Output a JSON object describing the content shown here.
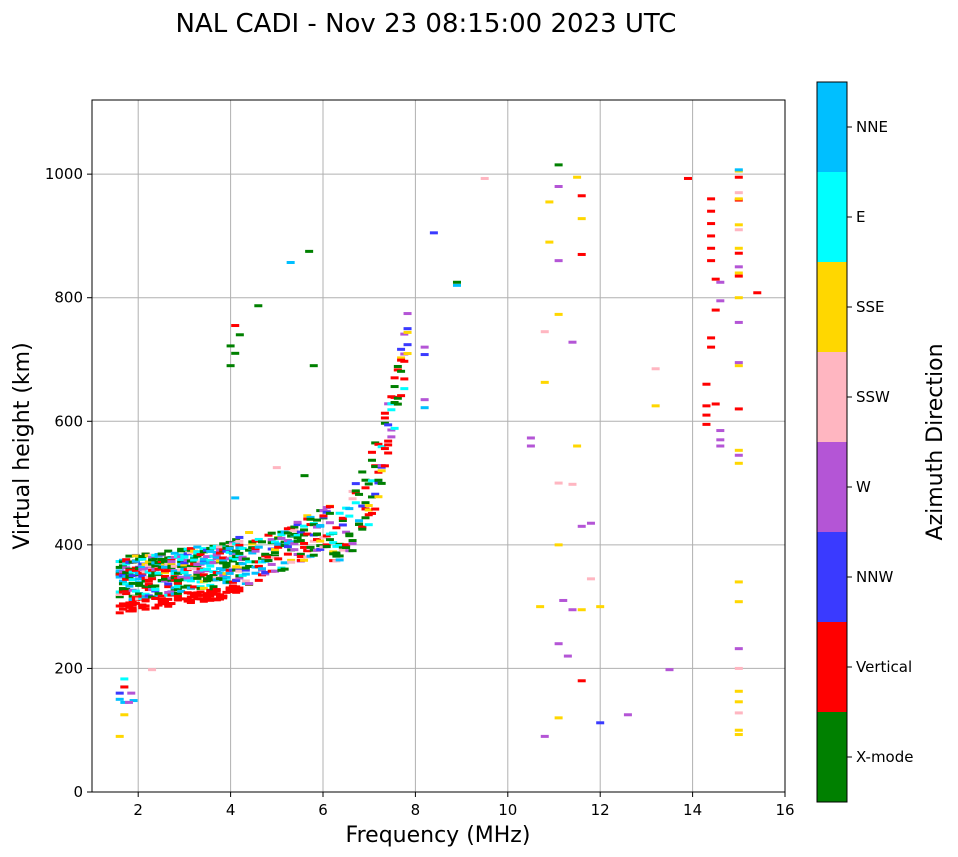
{
  "chart_data": {
    "type": "scatter",
    "title": "NAL CADI - Nov 23 08:15:00 2023 UTC",
    "xlabel": "Frequency (MHz)",
    "ylabel": "Virtual height (km)",
    "xlim": [
      1,
      16
    ],
    "ylim": [
      0,
      1120
    ],
    "xticks": [
      2,
      4,
      6,
      8,
      10,
      12,
      14,
      16
    ],
    "yticks": [
      0,
      200,
      400,
      600,
      800,
      1000
    ],
    "grid": true,
    "colorbar": {
      "label": "Azimuth Direction",
      "categories": [
        {
          "name": "X-mode",
          "color": "#008000"
        },
        {
          "name": "Vertical",
          "color": "#ff0000"
        },
        {
          "name": "NNW",
          "color": "#3a3aff"
        },
        {
          "name": "W",
          "color": "#b455d6"
        },
        {
          "name": "SSW",
          "color": "#ffb6c1"
        },
        {
          "name": "SSE",
          "color": "#ffd700"
        },
        {
          "name": "E",
          "color": "#00ffff"
        },
        {
          "name": "NNE",
          "color": "#00bfff"
        }
      ]
    },
    "points": [
      [
        14.4,
        960,
        "Vertical"
      ],
      [
        14.4,
        940,
        "Vertical"
      ],
      [
        14.4,
        920,
        "Vertical"
      ],
      [
        14.4,
        900,
        "Vertical"
      ],
      [
        14.4,
        880,
        "Vertical"
      ],
      [
        14.4,
        860,
        "Vertical"
      ],
      [
        14.4,
        735,
        "Vertical"
      ],
      [
        14.4,
        720,
        "Vertical"
      ],
      [
        14.3,
        660,
        "Vertical"
      ],
      [
        14.3,
        625,
        "Vertical"
      ],
      [
        14.3,
        610,
        "Vertical"
      ],
      [
        14.3,
        595,
        "Vertical"
      ],
      [
        14.5,
        628,
        "Vertical"
      ],
      [
        14.5,
        830,
        "Vertical"
      ],
      [
        14.5,
        780,
        "Vertical"
      ],
      [
        15.4,
        808,
        "Vertical"
      ],
      [
        13.9,
        993,
        "Vertical"
      ],
      [
        15.0,
        620,
        "Vertical"
      ],
      [
        15.0,
        995,
        "Vertical"
      ],
      [
        15.0,
        958,
        "Vertical"
      ],
      [
        15.0,
        872,
        "Vertical"
      ],
      [
        15.0,
        835,
        "Vertical"
      ],
      [
        11.6,
        965,
        "Vertical"
      ],
      [
        11.6,
        870,
        "Vertical"
      ],
      [
        11.6,
        180,
        "Vertical"
      ],
      [
        15.0,
        1005,
        "SSE"
      ],
      [
        15.0,
        960,
        "SSE"
      ],
      [
        15.0,
        918,
        "SSE"
      ],
      [
        15.0,
        880,
        "SSE"
      ],
      [
        15.0,
        840,
        "SSE"
      ],
      [
        15.0,
        800,
        "SSE"
      ],
      [
        15.0,
        690,
        "SSE"
      ],
      [
        15.0,
        553,
        "SSE"
      ],
      [
        15.0,
        532,
        "SSE"
      ],
      [
        15.0,
        340,
        "SSE"
      ],
      [
        15.0,
        308,
        "SSE"
      ],
      [
        15.0,
        163,
        "SSE"
      ],
      [
        15.0,
        146,
        "SSE"
      ],
      [
        15.0,
        100,
        "SSE"
      ],
      [
        15.0,
        93,
        "SSE"
      ],
      [
        13.2,
        625,
        "SSE"
      ],
      [
        10.8,
        663,
        "SSE"
      ],
      [
        10.9,
        890,
        "SSE"
      ],
      [
        10.9,
        955,
        "SSE"
      ],
      [
        11.1,
        773,
        "SSE"
      ],
      [
        11.6,
        928,
        "SSE"
      ],
      [
        11.5,
        995,
        "SSE"
      ],
      [
        11.5,
        560,
        "SSE"
      ],
      [
        11.1,
        400,
        "SSE"
      ],
      [
        11.6,
        295,
        "SSE"
      ],
      [
        12.0,
        300,
        "SSE"
      ],
      [
        10.7,
        300,
        "SSE"
      ],
      [
        11.1,
        120,
        "SSE"
      ],
      [
        1.6,
        90,
        "SSE"
      ],
      [
        14.6,
        585,
        "W"
      ],
      [
        14.6,
        570,
        "W"
      ],
      [
        14.6,
        560,
        "W"
      ],
      [
        14.6,
        825,
        "W"
      ],
      [
        14.6,
        795,
        "W"
      ],
      [
        15.0,
        850,
        "W"
      ],
      [
        15.0,
        760,
        "W"
      ],
      [
        15.0,
        695,
        "W"
      ],
      [
        15.0,
        545,
        "W"
      ],
      [
        15.0,
        232,
        "W"
      ],
      [
        12.6,
        125,
        "W"
      ],
      [
        11.3,
        220,
        "W"
      ],
      [
        11.4,
        295,
        "W"
      ],
      [
        11.2,
        310,
        "W"
      ],
      [
        11.1,
        240,
        "W"
      ],
      [
        10.5,
        573,
        "W"
      ],
      [
        10.5,
        560,
        "W"
      ],
      [
        11.1,
        860,
        "W"
      ],
      [
        11.1,
        980,
        "W"
      ],
      [
        8.2,
        720,
        "W"
      ],
      [
        8.2,
        635,
        "W"
      ],
      [
        11.6,
        430,
        "W"
      ],
      [
        11.8,
        435,
        "W"
      ],
      [
        10.8,
        90,
        "W"
      ],
      [
        11.4,
        728,
        "W"
      ],
      [
        13.5,
        198,
        "W"
      ],
      [
        15.0,
        970,
        "SSW"
      ],
      [
        15.0,
        910,
        "SSW"
      ],
      [
        15.0,
        200,
        "SSW"
      ],
      [
        15.0,
        128,
        "SSW"
      ],
      [
        13.2,
        685,
        "SSW"
      ],
      [
        10.8,
        745,
        "SSW"
      ],
      [
        11.1,
        500,
        "SSW"
      ],
      [
        11.8,
        345,
        "SSW"
      ],
      [
        9.5,
        993,
        "SSW"
      ],
      [
        11.4,
        498,
        "SSW"
      ],
      [
        15.0,
        1007,
        "NNE"
      ],
      [
        8.2,
        622,
        "NNE"
      ],
      [
        8.9,
        820,
        "NNE"
      ],
      [
        8.4,
        905,
        "NNW"
      ],
      [
        8.2,
        708,
        "NNW"
      ],
      [
        12.0,
        112,
        "NNW"
      ],
      [
        11.1,
        1015,
        "X-mode"
      ],
      [
        8.9,
        825,
        "X-mode"
      ],
      [
        1.6,
        150,
        "NNE"
      ],
      [
        1.7,
        145,
        "NNE"
      ],
      [
        1.9,
        148,
        "NNE"
      ],
      [
        1.7,
        183,
        "E"
      ],
      [
        1.7,
        170,
        "E"
      ],
      [
        1.7,
        125,
        "SSE"
      ],
      [
        1.6,
        160,
        "NNW"
      ],
      [
        1.8,
        145,
        "W"
      ],
      [
        1.85,
        160,
        "W"
      ],
      [
        1.7,
        170,
        "Vertical"
      ],
      [
        2.3,
        198,
        "SSW"
      ]
    ]
  }
}
